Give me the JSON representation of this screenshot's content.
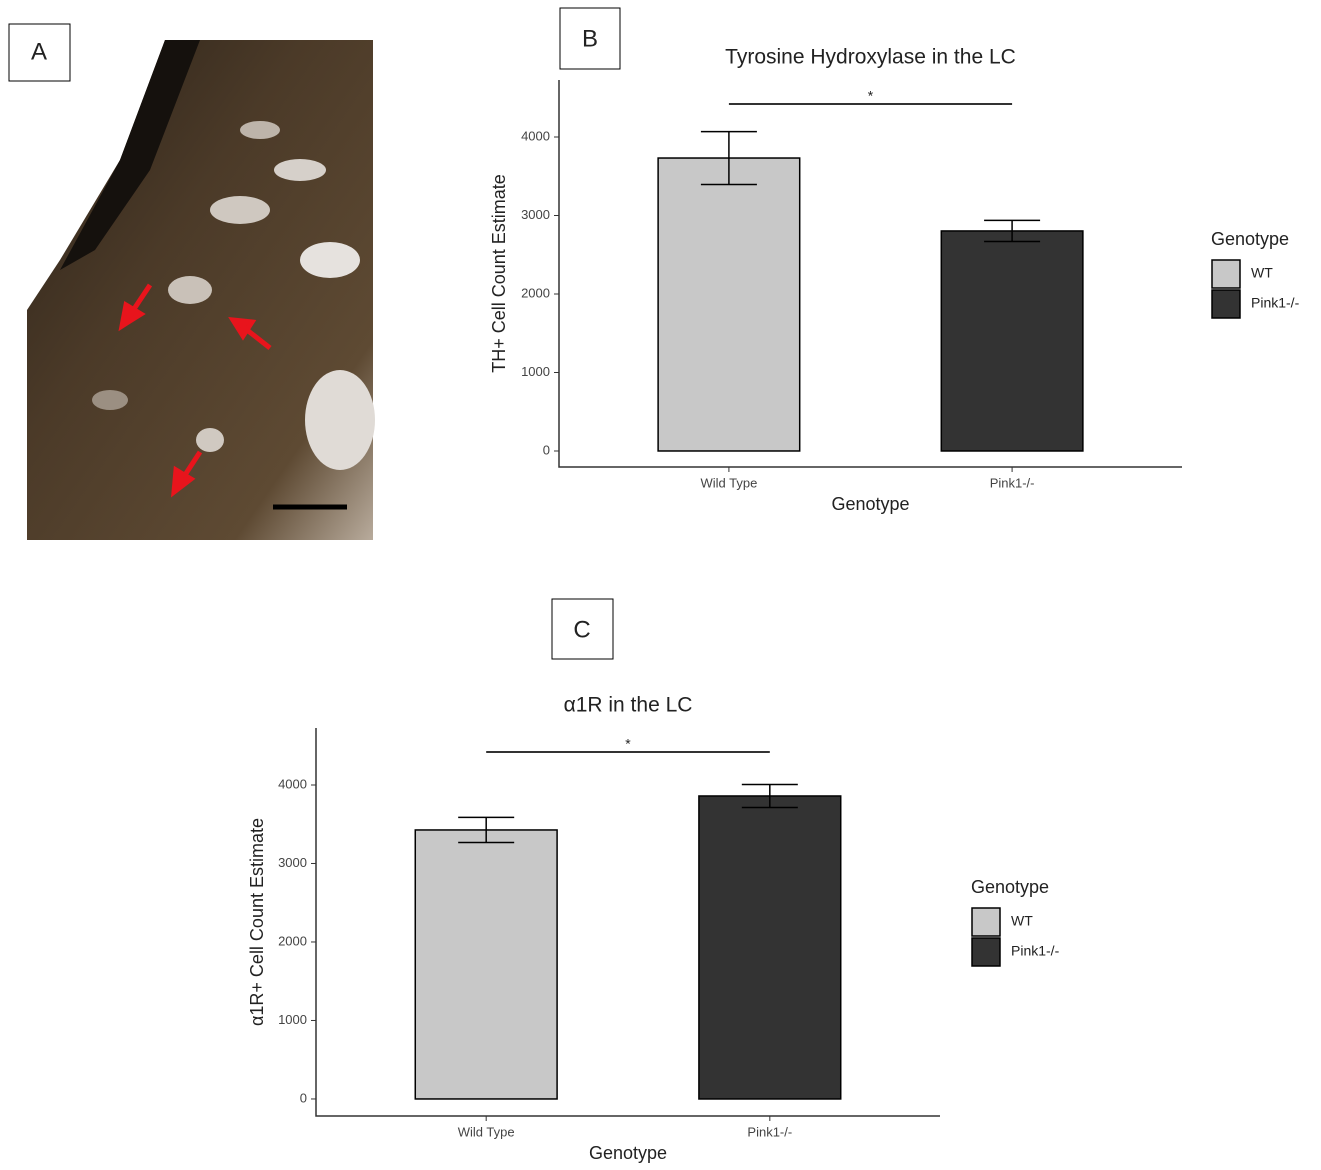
{
  "panel_labels": [
    "A",
    "B",
    "C"
  ],
  "chart_data": [
    {
      "type": "bar",
      "title": "Tyrosine Hydroxylase in the LC",
      "x_label": "Genotype",
      "y_label": "TH+ Cell Count Estimate",
      "categories": [
        "Wild Type",
        "Pink1-/-"
      ],
      "series": [
        {
          "name": "WT",
          "color": "#c8c8c8",
          "values": [
            3732,
            null
          ],
          "errors": [
            337,
            null
          ]
        },
        {
          "name": "Pink1-/-",
          "color": "#333333",
          "values": [
            null,
            2803
          ],
          "errors": [
            null,
            134
          ]
        }
      ],
      "ylim": [
        -204,
        4726
      ],
      "yticks": [
        0,
        1000,
        2000,
        3000,
        4000
      ],
      "annotation": "*",
      "legend_title": "Genotype",
      "grid": false
    },
    {
      "type": "bar",
      "title": "α1R in the LC",
      "x_label": "Genotype",
      "y_label": "α1R+ Cell Count Estimate",
      "categories": [
        "Wild Type",
        "Pink1-/-"
      ],
      "series": [
        {
          "name": "WT",
          "color": "#c8c8c8",
          "values": [
            3427,
            null
          ],
          "errors": [
            160,
            null
          ]
        },
        {
          "name": "Pink1-/-",
          "color": "#333333",
          "values": [
            null,
            3860
          ],
          "errors": [
            null,
            147
          ]
        }
      ],
      "ylim": [
        -217,
        4726
      ],
      "yticks": [
        0,
        1000,
        2000,
        3000,
        4000
      ],
      "annotation": "*",
      "legend_title": "Genotype",
      "grid": false
    }
  ]
}
